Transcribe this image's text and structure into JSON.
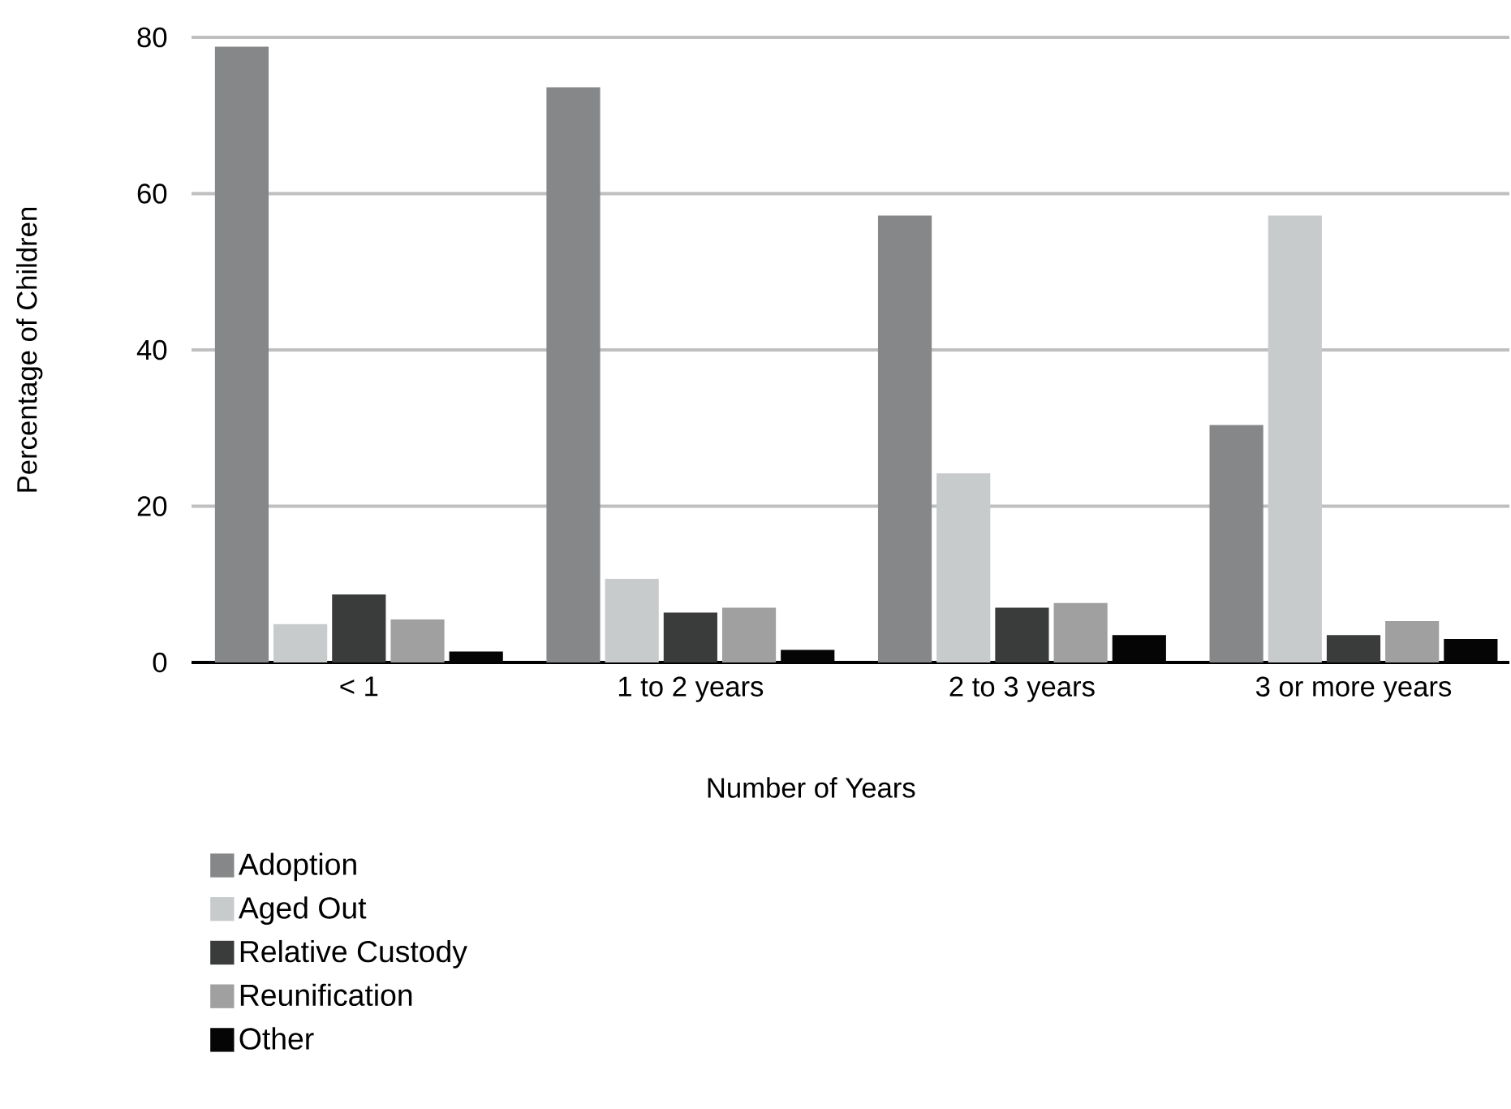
{
  "chart_data": {
    "type": "bar",
    "xlabel": "Number of Years",
    "ylabel": "Percentage of Children",
    "categories": [
      "< 1",
      "1 to 2 years",
      "2 to 3 years",
      "3 or more years"
    ],
    "series": [
      {
        "name": "Adoption",
        "color": "#868789",
        "values": [
          78.8,
          73.6,
          57.2,
          30.4
        ]
      },
      {
        "name": "Aged Out",
        "color": "#c8cbcc",
        "values": [
          4.9,
          10.7,
          24.2,
          57.2
        ]
      },
      {
        "name": "Relative Custody",
        "color": "#3a3c3b",
        "values": [
          8.7,
          6.4,
          7.0,
          3.5
        ]
      },
      {
        "name": "Reunification",
        "color": "#9fa09f",
        "values": [
          5.5,
          7.0,
          7.6,
          5.3
        ]
      },
      {
        "name": "Other",
        "color": "#050505",
        "values": [
          1.4,
          1.6,
          3.5,
          3.0
        ]
      }
    ],
    "ylim": [
      0,
      80
    ],
    "yticks": [
      0,
      20,
      40,
      60,
      80
    ],
    "grid": "y",
    "legend": "bottom left"
  }
}
